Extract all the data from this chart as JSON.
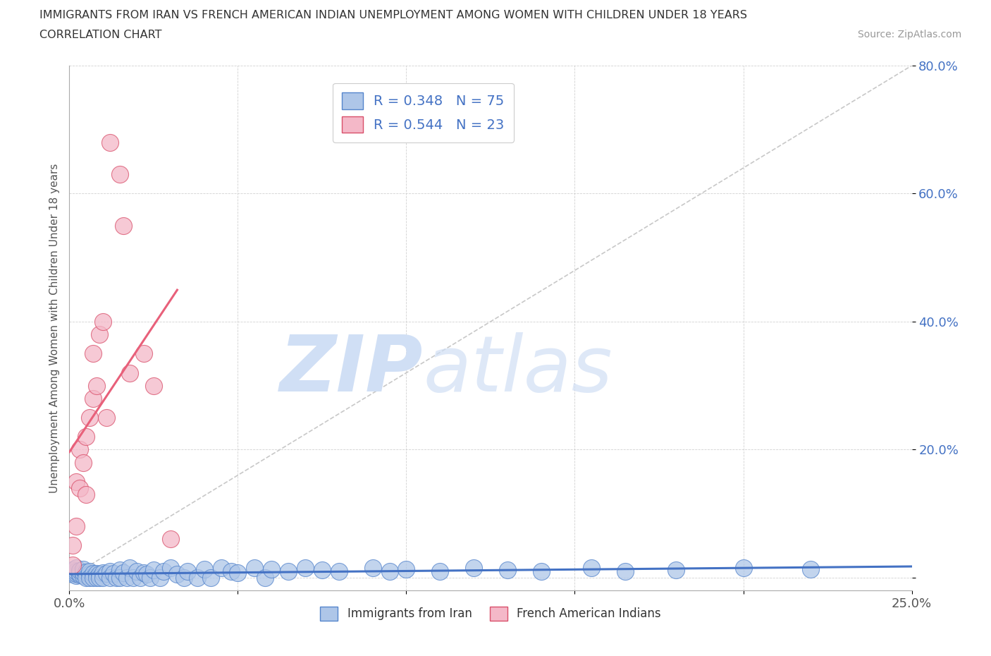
{
  "title": "IMMIGRANTS FROM IRAN VS FRENCH AMERICAN INDIAN UNEMPLOYMENT AMONG WOMEN WITH CHILDREN UNDER 18 YEARS",
  "subtitle": "CORRELATION CHART",
  "source": "Source: ZipAtlas.com",
  "ylabel": "Unemployment Among Women with Children Under 18 years",
  "xlim": [
    0.0,
    0.25
  ],
  "ylim": [
    -0.02,
    0.8
  ],
  "blue_color": "#aec6e8",
  "pink_color": "#f4b8c8",
  "blue_line_color": "#4472c4",
  "pink_line_color": "#e8607a",
  "blue_edge_color": "#5585cc",
  "pink_edge_color": "#d94f6a",
  "watermark_zip": "ZIP",
  "watermark_atlas": "atlas",
  "watermark_color": "#d0dff5",
  "legend_blue_label": "Immigrants from Iran",
  "legend_pink_label": "French American Indians",
  "legend_R_blue": "R = 0.348",
  "legend_N_blue": "N = 75",
  "legend_R_pink": "R = 0.544",
  "legend_N_pink": "N = 23",
  "blue_scatter_x": [
    0.001,
    0.001,
    0.001,
    0.002,
    0.002,
    0.002,
    0.002,
    0.003,
    0.003,
    0.003,
    0.004,
    0.004,
    0.004,
    0.005,
    0.005,
    0.005,
    0.006,
    0.006,
    0.006,
    0.007,
    0.007,
    0.008,
    0.008,
    0.009,
    0.009,
    0.01,
    0.01,
    0.011,
    0.012,
    0.012,
    0.013,
    0.014,
    0.015,
    0.015,
    0.016,
    0.017,
    0.018,
    0.019,
    0.02,
    0.021,
    0.022,
    0.023,
    0.024,
    0.025,
    0.027,
    0.028,
    0.03,
    0.032,
    0.034,
    0.035,
    0.038,
    0.04,
    0.042,
    0.045,
    0.048,
    0.05,
    0.055,
    0.058,
    0.06,
    0.065,
    0.07,
    0.075,
    0.08,
    0.09,
    0.095,
    0.1,
    0.11,
    0.12,
    0.13,
    0.14,
    0.155,
    0.165,
    0.18,
    0.2,
    0.22
  ],
  "blue_scatter_y": [
    0.005,
    0.008,
    0.012,
    0.003,
    0.006,
    0.01,
    0.015,
    0.004,
    0.007,
    0.011,
    0.003,
    0.008,
    0.013,
    0.004,
    0.009,
    0.0,
    0.005,
    0.01,
    0.0,
    0.006,
    0.0,
    0.007,
    0.0,
    0.005,
    0.0,
    0.008,
    0.0,
    0.006,
    0.01,
    0.0,
    0.007,
    0.0,
    0.012,
    0.0,
    0.008,
    0.0,
    0.015,
    0.0,
    0.01,
    0.0,
    0.008,
    0.005,
    0.0,
    0.012,
    0.0,
    0.01,
    0.015,
    0.005,
    0.0,
    0.01,
    0.0,
    0.013,
    0.0,
    0.015,
    0.01,
    0.008,
    0.015,
    0.0,
    0.013,
    0.01,
    0.015,
    0.012,
    0.01,
    0.015,
    0.01,
    0.013,
    0.01,
    0.015,
    0.012,
    0.01,
    0.015,
    0.01,
    0.012,
    0.015,
    0.013
  ],
  "pink_scatter_x": [
    0.001,
    0.001,
    0.002,
    0.002,
    0.003,
    0.003,
    0.004,
    0.005,
    0.005,
    0.006,
    0.007,
    0.007,
    0.008,
    0.009,
    0.01,
    0.011,
    0.012,
    0.015,
    0.016,
    0.018,
    0.022,
    0.025,
    0.03
  ],
  "pink_scatter_y": [
    0.02,
    0.05,
    0.08,
    0.15,
    0.14,
    0.2,
    0.18,
    0.22,
    0.13,
    0.25,
    0.28,
    0.35,
    0.3,
    0.38,
    0.4,
    0.25,
    0.68,
    0.63,
    0.55,
    0.32,
    0.35,
    0.3,
    0.06
  ]
}
